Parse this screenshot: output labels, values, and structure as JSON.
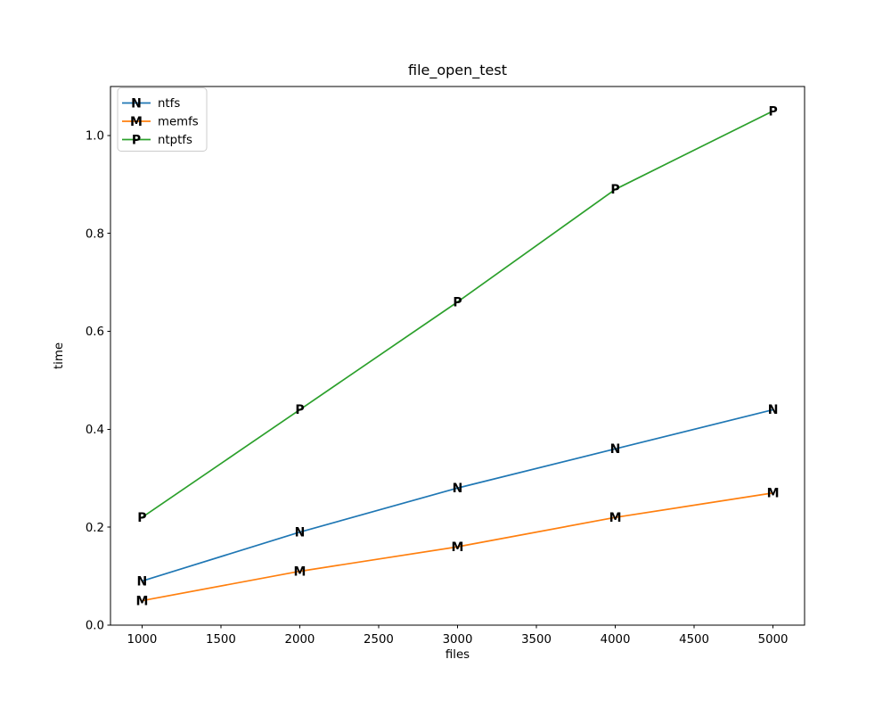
{
  "chart_data": {
    "type": "line",
    "title": "file_open_test",
    "xlabel": "files",
    "ylabel": "time",
    "x": [
      1000,
      2000,
      3000,
      4000,
      5000
    ],
    "series": [
      {
        "name": "ntfs",
        "marker": "N",
        "color": "#1f77b4",
        "values": [
          0.09,
          0.19,
          0.28,
          0.36,
          0.44
        ]
      },
      {
        "name": "memfs",
        "marker": "M",
        "color": "#ff7f0e",
        "values": [
          0.05,
          0.11,
          0.16,
          0.22,
          0.27
        ]
      },
      {
        "name": "ntptfs",
        "marker": "P",
        "color": "#2ca02c",
        "values": [
          0.22,
          0.44,
          0.66,
          0.89,
          1.05
        ]
      }
    ],
    "xlim": [
      800,
      5200
    ],
    "ylim": [
      0,
      1.1
    ],
    "xticks": [
      1000,
      1500,
      2000,
      2500,
      3000,
      3500,
      4000,
      4500,
      5000
    ],
    "xtick_labels": [
      "1000",
      "1500",
      "2000",
      "2500",
      "3000",
      "3500",
      "4000",
      "4500",
      "5000"
    ],
    "yticks": [
      0.0,
      0.2,
      0.4,
      0.6,
      0.8,
      1.0
    ],
    "ytick_labels": [
      "0.0",
      "0.2",
      "0.4",
      "0.6",
      "0.8",
      "1.0"
    ],
    "grid": false,
    "legend_position": "upper left",
    "colors": {
      "spine": "#000000",
      "background": "#ffffff",
      "legend_border": "#cccccc",
      "legend_background": "#ffffff"
    }
  }
}
